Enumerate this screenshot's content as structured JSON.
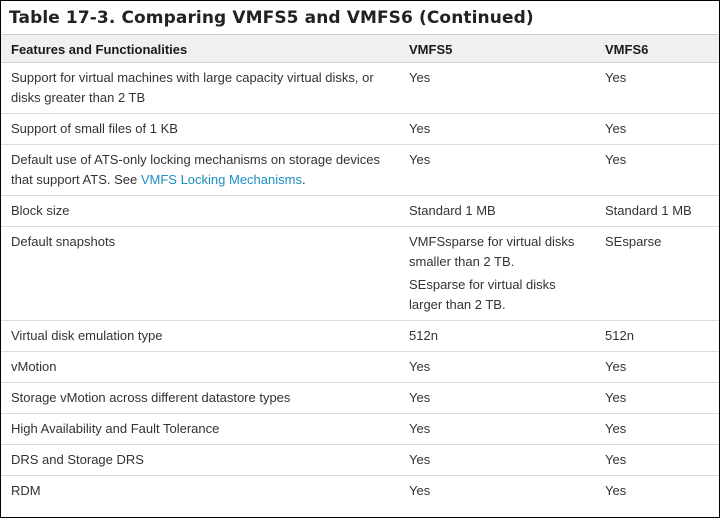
{
  "caption": "Table 17-3.  Comparing VMFS5 and VMFS6 (Continued)",
  "header": {
    "features": "Features and Functionalities",
    "vmfs5": "VMFS5",
    "vmfs6": "VMFS6"
  },
  "rows": [
    {
      "feature": "Support for virtual machines with large capacity virtual disks, or disks greater than 2 TB",
      "vmfs5": "Yes",
      "vmfs6": "Yes"
    },
    {
      "feature": "Support of small files of 1 KB",
      "vmfs5": "Yes",
      "vmfs6": "Yes"
    },
    {
      "feature": "Default use of ATS-only locking mechanisms on storage devices that support ATS. See ",
      "feature_link": "VMFS Locking Mechanisms",
      "feature_suffix": ".",
      "vmfs5": "Yes",
      "vmfs6": "Yes"
    },
    {
      "feature": "Block size",
      "vmfs5": "Standard 1 MB",
      "vmfs6": "Standard 1 MB"
    },
    {
      "feature": "Default snapshots",
      "vmfs5_p1": "VMFSsparse for virtual disks smaller than 2 TB.",
      "vmfs5_p2": "SEsparse for virtual disks larger than 2 TB.",
      "vmfs6": "SEsparse"
    },
    {
      "feature": "Virtual disk emulation type",
      "vmfs5": "512n",
      "vmfs6": "512n"
    },
    {
      "feature": "vMotion",
      "vmfs5": "Yes",
      "vmfs6": "Yes"
    },
    {
      "feature": "Storage vMotion across different datastore types",
      "vmfs5": "Yes",
      "vmfs6": "Yes"
    },
    {
      "feature": "High Availability and Fault Tolerance",
      "vmfs5": "Yes",
      "vmfs6": "Yes"
    },
    {
      "feature": "DRS and Storage DRS",
      "vmfs5": "Yes",
      "vmfs6": "Yes"
    },
    {
      "feature": "RDM",
      "vmfs5": "Yes",
      "vmfs6": "Yes"
    }
  ]
}
